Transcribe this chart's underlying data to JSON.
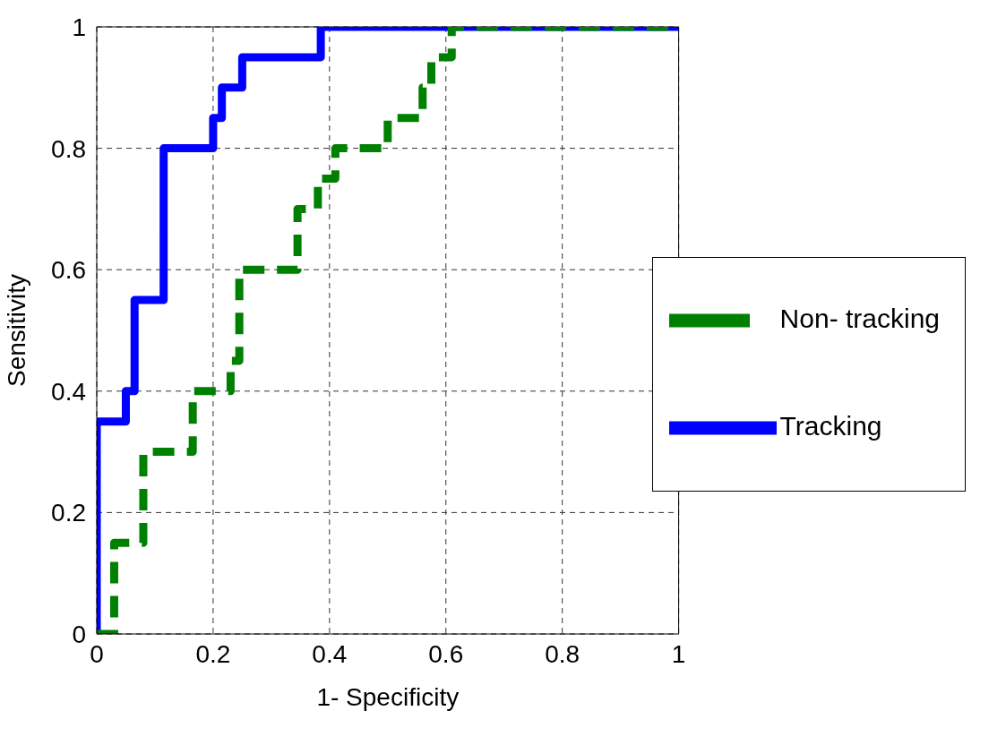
{
  "chart_data": {
    "type": "step",
    "xlabel": "1- Specificity",
    "ylabel": "Sensitivity",
    "xlim": [
      0,
      1
    ],
    "ylim": [
      0,
      1
    ],
    "xticks": [
      0,
      0.2,
      0.4,
      0.6,
      0.8,
      1
    ],
    "yticks": [
      0,
      0.2,
      0.4,
      0.6,
      0.8,
      1
    ],
    "grid": true,
    "legend": "right",
    "series": [
      {
        "name": "Tracking",
        "color": "#0000ff",
        "line_style": "solid",
        "x": [
          0,
          0,
          0.05,
          0.065,
          0.115,
          0.2,
          0.215,
          0.25,
          0.385,
          1
        ],
        "values": [
          0,
          0.35,
          0.4,
          0.55,
          0.8,
          0.85,
          0.9,
          0.95,
          1,
          1
        ]
      },
      {
        "name": "Non- tracking",
        "color": "#008000",
        "line_style": "dashed",
        "x": [
          0,
          0.03,
          0.08,
          0.165,
          0.23,
          0.245,
          0.345,
          0.38,
          0.41,
          0.5,
          0.56,
          0.575,
          0.61,
          1
        ],
        "values": [
          0,
          0.15,
          0.3,
          0.4,
          0.45,
          0.6,
          0.7,
          0.75,
          0.8,
          0.85,
          0.9,
          0.95,
          1,
          1
        ]
      }
    ]
  }
}
